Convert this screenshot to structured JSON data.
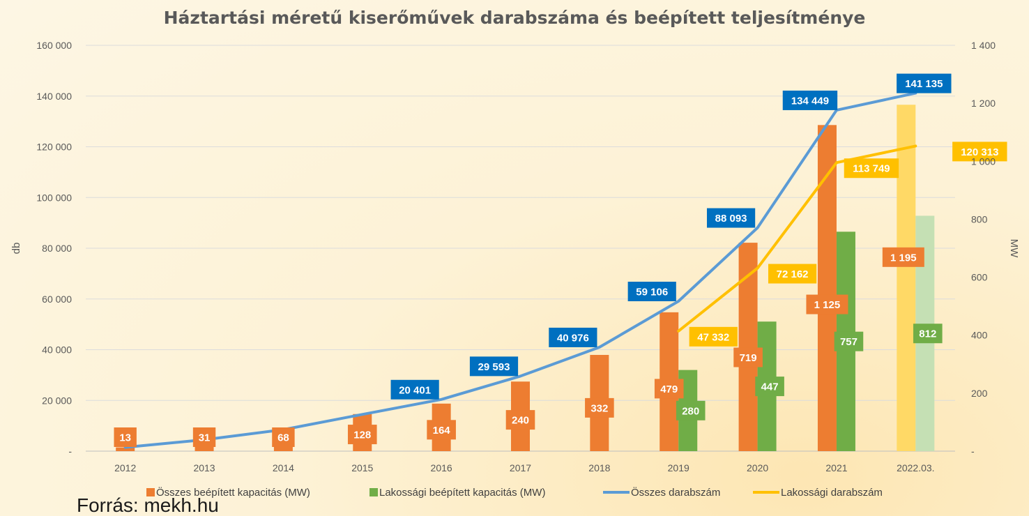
{
  "chart_data": {
    "type": "bar",
    "title": "Háztartási méretű kiserőművek darabszáma és beépített teljesítménye",
    "categories": [
      "2012",
      "2013",
      "2014",
      "2015",
      "2016",
      "2017",
      "2018",
      "2019",
      "2020",
      "2021",
      "2022.03."
    ],
    "y_left": {
      "label": "db",
      "range": [
        0,
        160000
      ],
      "ticks": [
        "-",
        "20 000",
        "40 000",
        "60 000",
        "80 000",
        "100 000",
        "120 000",
        "140 000",
        "160 000"
      ]
    },
    "y_right": {
      "label": "MW",
      "range": [
        0,
        1400
      ],
      "ticks": [
        "-",
        "200",
        "400",
        "600",
        "800",
        "1 000",
        "1 200",
        "1 400"
      ]
    },
    "grid": "horizontal",
    "legend_position": "bottom",
    "series": [
      {
        "name": "Összes beépített kapacitás (MW)",
        "kind": "bar",
        "axis": "right",
        "color": "#ed7d31",
        "last_color": "#ffd966",
        "values": [
          13,
          31,
          68,
          128,
          164,
          240,
          332,
          479,
          719,
          1125,
          1195
        ],
        "labels": [
          "13",
          "31",
          "68",
          "128",
          "164",
          "240",
          "332",
          "479",
          "719",
          "1 125",
          "1 195"
        ]
      },
      {
        "name": "Lakossági beépített kapacitás (MW)",
        "kind": "bar",
        "axis": "right",
        "color": "#70ad47",
        "last_color": "#c5e0b4",
        "values": [
          null,
          null,
          null,
          null,
          null,
          null,
          null,
          280,
          447,
          757,
          812
        ],
        "labels": [
          "",
          "",
          "",
          "",
          "",
          "",
          "",
          "280",
          "447",
          "757",
          "812"
        ]
      },
      {
        "name": "Összes darabszám",
        "kind": "line",
        "axis": "left",
        "color": "#5b9bd5",
        "label_color": "#0070c0",
        "values": [
          1500,
          4500,
          8500,
          14500,
          20401,
          29593,
          40976,
          59106,
          88093,
          134449,
          141135
        ],
        "labels": [
          "",
          "",
          "",
          "",
          "20 401",
          "29 593",
          "40 976",
          "59 106",
          "88 093",
          "134 449",
          "141 135"
        ]
      },
      {
        "name": "Lakossági darabszám",
        "kind": "line",
        "axis": "left",
        "color": "#ffc000",
        "label_color": "#ffc000",
        "values": [
          null,
          null,
          null,
          null,
          null,
          null,
          null,
          47332,
          72162,
          113749,
          120313
        ],
        "labels": [
          "",
          "",
          "",
          "",
          "",
          "",
          "",
          "47 332",
          "72 162",
          "113 749",
          "120 313"
        ]
      }
    ]
  },
  "source": "Forrás: mekh.hu"
}
